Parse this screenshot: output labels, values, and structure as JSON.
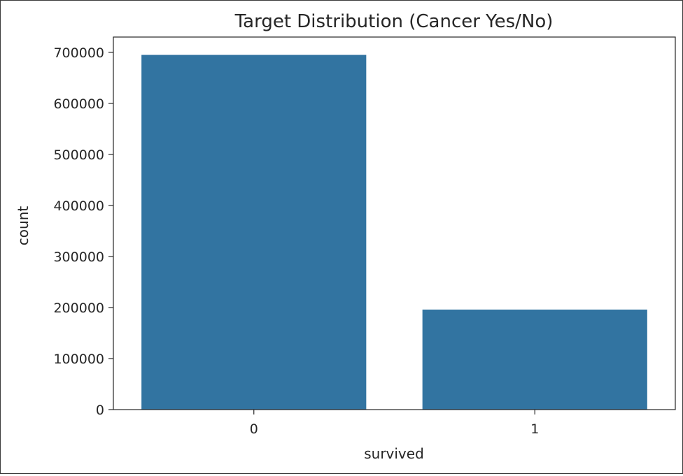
{
  "chart_data": {
    "type": "bar",
    "title": "Target Distribution (Cancer Yes/No)",
    "xlabel": "survived",
    "ylabel": "count",
    "categories": [
      "0",
      "1"
    ],
    "values": [
      695000,
      196000
    ],
    "ylim": [
      0,
      730000
    ],
    "yticks": [
      0,
      100000,
      200000,
      300000,
      400000,
      500000,
      600000,
      700000
    ],
    "ytick_labels": [
      "0",
      "100000",
      "200000",
      "300000",
      "400000",
      "500000",
      "600000",
      "700000"
    ],
    "bar_color": "#3274a1",
    "grid": false,
    "legend": "none"
  }
}
